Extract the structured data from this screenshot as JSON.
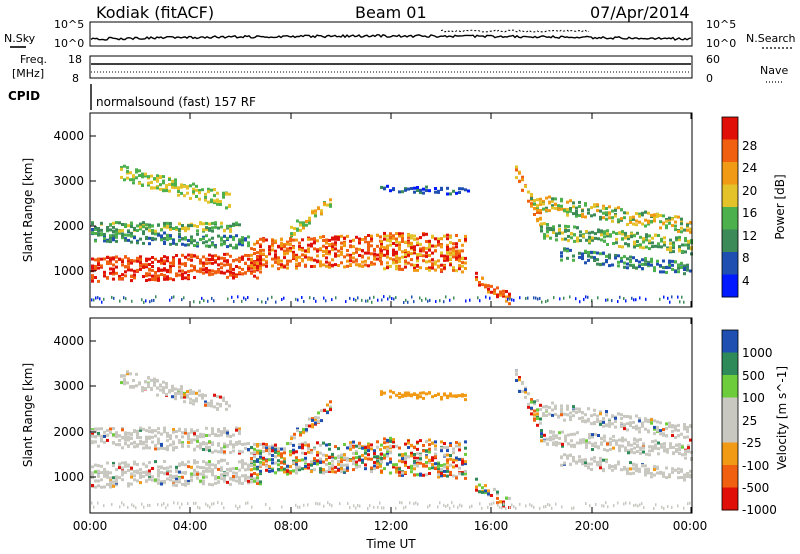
{
  "header": {
    "station": "Kodiak (fitACF)",
    "beam": "Beam 01",
    "date": "07/Apr/2014"
  },
  "left_panel_labels": {
    "n_sky": "N.Sky",
    "freq": "Freq.",
    "freq_unit": "[MHz]",
    "cpid": "CPID"
  },
  "right_panel_labels": {
    "n_search": "N.Search",
    "nave": "Nave"
  },
  "cpid_text": "normalsound (fast) 157 RF",
  "colors": {
    "power": [
      "#0019ff",
      "#1f4fb0",
      "#3b8a58",
      "#4cb04c",
      "#e3c22a",
      "#f09a16",
      "#f06010",
      "#e01008"
    ],
    "velocity": [
      "#e01008",
      "#f06010",
      "#f09a16",
      "#c8c8c0",
      "#c8c8c0",
      "#6ccc3c",
      "#2f8a5a",
      "#1f4fb0"
    ]
  },
  "chart_data": [
    {
      "type": "line",
      "name": "noise",
      "left_ticks": [
        "10^5",
        "10^0"
      ],
      "right_ticks": [
        "10^5",
        "10^0"
      ]
    },
    {
      "type": "line",
      "name": "freq-nave",
      "left_ticks": [
        "18",
        "8"
      ],
      "right_ticks": [
        "60",
        "0"
      ]
    },
    {
      "type": "heatmap",
      "name": "power",
      "ylabel": "Slant Range [km]",
      "y_ticks": [
        "4000",
        "3000",
        "2000",
        "1000"
      ],
      "colorbar_label": "Power [dB]",
      "colorbar_ticks": [
        "28",
        "24",
        "20",
        "16",
        "12",
        "8",
        "4"
      ]
    },
    {
      "type": "heatmap",
      "name": "velocity",
      "ylabel": "Slant Range [km]",
      "y_ticks": [
        "4000",
        "3000",
        "2000",
        "1000"
      ],
      "colorbar_label": "Velocity [m s^-1]",
      "colorbar_ticks": [
        "1000",
        "500",
        "100",
        "25",
        "-25",
        "-100",
        "-500",
        "-1000"
      ]
    }
  ],
  "x_axis": {
    "label": "Time UT",
    "ticks": [
      "00:00",
      "04:00",
      "08:00",
      "12:00",
      "16:00",
      "20:00",
      "00:00"
    ]
  }
}
